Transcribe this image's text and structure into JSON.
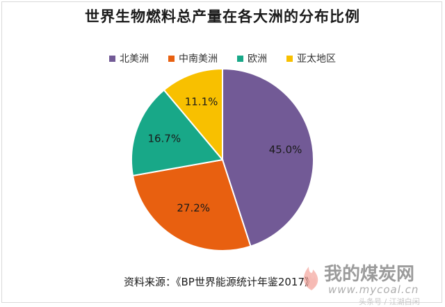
{
  "chart_data": {
    "type": "pie",
    "title": "世界生物燃料总产量在各大洲的分布比例",
    "categories": [
      "北美洲",
      "中南美洲",
      "欧洲",
      "亚太地区"
    ],
    "values": [
      45.0,
      27.2,
      16.7,
      11.1
    ],
    "labels": [
      "45.0%",
      "27.2%",
      "16.7%",
      "11.1%"
    ],
    "colors": [
      "#725a96",
      "#e86010",
      "#18a888",
      "#f8c000"
    ],
    "legend_position": "top"
  },
  "source_text": "资料来源：《BP世界能源统计年鉴2017》",
  "watermark": {
    "brand": "我的煤炭网",
    "url": "www.mycoal.cn",
    "sub": "头条号 / 江湖白闲"
  }
}
